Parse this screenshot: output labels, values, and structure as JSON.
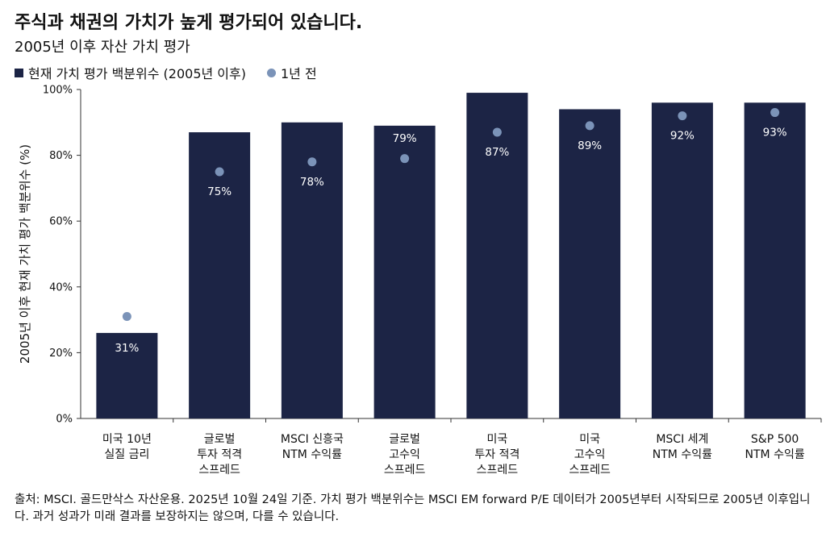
{
  "colors": {
    "bar": "#1c2445",
    "dot": "#7b93b8",
    "axis": "#333333"
  },
  "chart_data": {
    "type": "bar",
    "title": "주식과 채권의 가치가 높게 평가되어 있습니다.",
    "subtitle": "2005년 이후 자산 가치 평가",
    "ylabel": "2005년 이후 현재 가치 평가 백분위수 (%)",
    "xlabel": "",
    "ylim": [
      0,
      100
    ],
    "yticks": [
      {
        "value": 0,
        "label": "0%"
      },
      {
        "value": 20,
        "label": "20%"
      },
      {
        "value": 40,
        "label": "40%"
      },
      {
        "value": 60,
        "label": "60%"
      },
      {
        "value": 80,
        "label": "80%"
      },
      {
        "value": 100,
        "label": "100%"
      }
    ],
    "legend": [
      {
        "name": "현재 가치 평가 백분위수 (2005년 이후)",
        "marker": "bar"
      },
      {
        "name": "1년 전",
        "marker": "dot"
      }
    ],
    "categories": [
      [
        "미국 10년",
        "실질 금리"
      ],
      [
        "글로벌",
        "투자 적격",
        "스프레드"
      ],
      [
        "MSCI 신흥국",
        "NTM 수익률"
      ],
      [
        "글로벌",
        "고수익",
        "스프레드"
      ],
      [
        "미국",
        "투자 적격",
        "스프레드"
      ],
      [
        "미국",
        "고수익",
        "스프레드"
      ],
      [
        "MSCI 세계",
        "NTM 수익률"
      ],
      [
        "S&P 500",
        "NTM 수익률"
      ]
    ],
    "series": [
      {
        "name": "현재 가치 평가 백분위수 (2005년 이후)",
        "type": "bar",
        "values": [
          26,
          87,
          90,
          89,
          99,
          94,
          96,
          96
        ]
      },
      {
        "name": "1년 전",
        "type": "dot",
        "values": [
          31,
          75,
          78,
          79,
          87,
          89,
          92,
          93
        ],
        "labels": [
          "31%",
          "75%",
          "78%",
          "79%",
          "87%",
          "89%",
          "92%",
          "93%"
        ]
      }
    ]
  },
  "footer": "출처: MSCI. 골드만삭스 자산운용. 2025년 10월 24일 기준. 가치 평가 백분위수는 MSCI EM forward P/E 데이터가 2005년부터 시작되므로 2005년 이후입니다. 과거 성과가 미래 결과를 보장하지는 않으며, 다를 수 있습니다."
}
